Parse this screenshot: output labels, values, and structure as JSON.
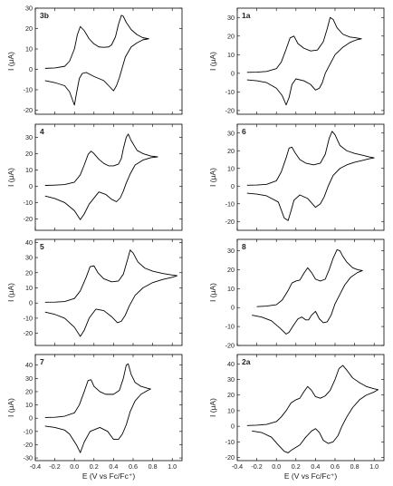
{
  "chart_data": [
    {
      "type": "line",
      "panel_label": "3b",
      "column": "left",
      "xlim": [
        -0.4,
        1.1
      ],
      "ylim": [
        -22,
        30
      ],
      "yticks": [
        -20,
        -10,
        0,
        10,
        20,
        30
      ],
      "ylabel": "I (μA)",
      "series": [
        {
          "x": [
            -0.3,
            -0.2,
            -0.1,
            -0.05,
            0.0,
            0.03,
            0.06,
            0.1,
            0.15,
            0.2,
            0.25,
            0.3,
            0.35,
            0.38,
            0.42,
            0.45,
            0.48,
            0.5,
            0.53,
            0.58,
            0.64,
            0.7,
            0.76,
            0.7,
            0.64,
            0.58,
            0.52,
            0.49,
            0.46,
            0.43,
            0.4,
            0.35,
            0.3,
            0.2,
            0.12,
            0.08,
            0.05,
            0.02,
            0.0,
            -0.05,
            -0.1,
            -0.2,
            -0.3
          ],
          "y": [
            0.5,
            0.7,
            1.5,
            4,
            10,
            17,
            21,
            19,
            15,
            12.5,
            11,
            10.8,
            11,
            12,
            16,
            22,
            26.5,
            26,
            23,
            19.5,
            17,
            15.5,
            15,
            14.5,
            13,
            11,
            6,
            1,
            -4,
            -8,
            -10.5,
            -8,
            -5.5,
            -3.5,
            -1.5,
            -2,
            -4.5,
            -12,
            -17.5,
            -11,
            -8,
            -6.5,
            -5.5
          ]
        }
      ]
    },
    {
      "type": "line",
      "panel_label": "1a",
      "column": "right",
      "xlim": [
        -0.4,
        1.1
      ],
      "ylim": [
        -22,
        35
      ],
      "yticks": [
        -20,
        -10,
        0,
        10,
        20,
        30
      ],
      "ylabel": "I (μA)",
      "series": [
        {
          "x": [
            -0.3,
            -0.2,
            -0.1,
            0.0,
            0.05,
            0.1,
            0.14,
            0.18,
            0.22,
            0.28,
            0.35,
            0.42,
            0.48,
            0.52,
            0.55,
            0.58,
            0.62,
            0.68,
            0.75,
            0.82,
            0.87,
            0.82,
            0.75,
            0.68,
            0.6,
            0.55,
            0.5,
            0.47,
            0.44,
            0.4,
            0.35,
            0.28,
            0.2,
            0.16,
            0.13,
            0.1,
            0.06,
            0.0,
            -0.1,
            -0.2,
            -0.3
          ],
          "y": [
            0.5,
            0.6,
            1,
            2.5,
            6,
            13,
            19,
            20,
            16,
            13.5,
            12,
            12.5,
            17,
            24,
            30,
            29,
            24.5,
            21,
            19.5,
            19,
            18.5,
            18,
            16.5,
            14,
            10,
            5,
            0,
            -5,
            -8,
            -9,
            -6,
            -4,
            -3,
            -6,
            -13,
            -17,
            -12,
            -8,
            -5,
            -4,
            -3.5
          ]
        }
      ]
    },
    {
      "type": "line",
      "panel_label": "4",
      "column": "left",
      "xlim": [
        -0.4,
        1.1
      ],
      "ylim": [
        -27,
        38
      ],
      "yticks": [
        -20,
        -10,
        0,
        10,
        20,
        30
      ],
      "ylabel": "I (μA)",
      "series": [
        {
          "x": [
            -0.3,
            -0.2,
            -0.1,
            0.0,
            0.06,
            0.1,
            0.14,
            0.17,
            0.2,
            0.25,
            0.3,
            0.35,
            0.4,
            0.45,
            0.48,
            0.5,
            0.53,
            0.55,
            0.58,
            0.64,
            0.7,
            0.78,
            0.85,
            0.78,
            0.7,
            0.62,
            0.57,
            0.53,
            0.5,
            0.47,
            0.43,
            0.38,
            0.32,
            0.25,
            0.15,
            0.1,
            0.06,
            0.0,
            -0.1,
            -0.2,
            -0.3
          ],
          "y": [
            0.5,
            0.7,
            1,
            2.5,
            7,
            13,
            19.5,
            21.5,
            20,
            16.5,
            14,
            12.5,
            12.5,
            13.5,
            17,
            23,
            30,
            32,
            28,
            22,
            20,
            18.5,
            18,
            17.5,
            16,
            13,
            7.5,
            2,
            -3,
            -7,
            -9.5,
            -8,
            -5,
            -3.5,
            -11,
            -17,
            -20.5,
            -15,
            -10,
            -7.5,
            -6
          ]
        }
      ]
    },
    {
      "type": "line",
      "panel_label": "6",
      "column": "right",
      "xlim": [
        -0.4,
        1.1
      ],
      "ylim": [
        -25,
        35
      ],
      "yticks": [
        -20,
        -10,
        0,
        10,
        20,
        30
      ],
      "ylabel": "I (μA)",
      "series": [
        {
          "x": [
            -0.3,
            -0.2,
            -0.1,
            0.0,
            0.05,
            0.1,
            0.13,
            0.16,
            0.19,
            0.24,
            0.3,
            0.38,
            0.45,
            0.5,
            0.54,
            0.57,
            0.6,
            0.65,
            0.72,
            0.8,
            0.88,
            0.95,
            1.0,
            0.95,
            0.88,
            0.8,
            0.72,
            0.65,
            0.58,
            0.53,
            0.49,
            0.45,
            0.4,
            0.32,
            0.24,
            0.18,
            0.15,
            0.12,
            0.08,
            0.02,
            -0.1,
            -0.2,
            -0.3
          ],
          "y": [
            0.5,
            0.6,
            1,
            3,
            8,
            16,
            21.5,
            22,
            19,
            15,
            13,
            12,
            13,
            18,
            27,
            31,
            29,
            23,
            20,
            18.5,
            17.5,
            16.5,
            16,
            15.5,
            14.5,
            13.5,
            12,
            10,
            6,
            0,
            -6,
            -10,
            -12,
            -7,
            -5,
            -8,
            -14,
            -19.5,
            -18,
            -9,
            -5.5,
            -4.5,
            -4
          ]
        }
      ]
    },
    {
      "type": "line",
      "panel_label": "5",
      "column": "left",
      "xlim": [
        -0.4,
        1.1
      ],
      "ylim": [
        -28,
        42
      ],
      "yticks": [
        -20,
        -10,
        0,
        10,
        20,
        30,
        40
      ],
      "ylabel": "I (μA)",
      "series": [
        {
          "x": [
            -0.3,
            -0.2,
            -0.1,
            0.0,
            0.06,
            0.12,
            0.16,
            0.2,
            0.24,
            0.3,
            0.38,
            0.45,
            0.5,
            0.54,
            0.57,
            0.6,
            0.65,
            0.72,
            0.8,
            0.9,
            1.0,
            1.05,
            1.0,
            0.9,
            0.8,
            0.7,
            0.62,
            0.56,
            0.52,
            0.48,
            0.44,
            0.38,
            0.3,
            0.22,
            0.15,
            0.1,
            0.06,
            0.0,
            -0.1,
            -0.2,
            -0.3
          ],
          "y": [
            0.5,
            0.6,
            1,
            3,
            8,
            17,
            24,
            24.5,
            20,
            16,
            14,
            14.5,
            19,
            28,
            35,
            33,
            27,
            23,
            21,
            19.5,
            18.5,
            18,
            17,
            15.5,
            13.5,
            10,
            5,
            -2,
            -8,
            -12,
            -13,
            -9,
            -5,
            -4,
            -10,
            -18,
            -22,
            -16,
            -10,
            -7.5,
            -6
          ]
        }
      ]
    },
    {
      "type": "line",
      "panel_label": "8",
      "column": "right",
      "xlim": [
        -0.4,
        1.1
      ],
      "ylim": [
        -20,
        36
      ],
      "yticks": [
        -20,
        -10,
        0,
        10,
        20,
        30
      ],
      "ylabel": "I (μA)",
      "series": [
        {
          "x": [
            -0.2,
            -0.1,
            0.0,
            0.06,
            0.12,
            0.16,
            0.2,
            0.24,
            0.28,
            0.32,
            0.36,
            0.4,
            0.45,
            0.5,
            0.54,
            0.58,
            0.62,
            0.65,
            0.68,
            0.72,
            0.78,
            0.83,
            0.88,
            0.83,
            0.76,
            0.7,
            0.65,
            0.6,
            0.56,
            0.52,
            0.48,
            0.44,
            0.4,
            0.36,
            0.33,
            0.3,
            0.26,
            0.22,
            0.18,
            0.13,
            0.1,
            0.04,
            -0.05,
            -0.15,
            -0.25
          ],
          "y": [
            0.5,
            0.8,
            1.5,
            4,
            9,
            13,
            14,
            14.5,
            18,
            21,
            18.5,
            15,
            14,
            15,
            20,
            26,
            30.5,
            30,
            27,
            24,
            21,
            20,
            19.5,
            18.5,
            16,
            12,
            7,
            2,
            -4,
            -7.5,
            -8,
            -6,
            -2,
            -4,
            -6.5,
            -6.5,
            -5,
            -6,
            -9,
            -13,
            -14,
            -11,
            -7,
            -5,
            -4
          ]
        }
      ]
    },
    {
      "type": "line",
      "panel_label": "7",
      "column": "left",
      "xlim": [
        -0.4,
        1.1
      ],
      "ylim": [
        -32,
        48
      ],
      "yticks": [
        -30,
        -20,
        -10,
        0,
        10,
        20,
        30,
        40
      ],
      "ylabel": "I (μA)",
      "series": [
        {
          "x": [
            -0.3,
            -0.2,
            -0.1,
            0.0,
            0.05,
            0.1,
            0.14,
            0.17,
            0.2,
            0.26,
            0.32,
            0.4,
            0.46,
            0.5,
            0.53,
            0.55,
            0.58,
            0.62,
            0.68,
            0.75,
            0.78,
            0.75,
            0.68,
            0.62,
            0.57,
            0.53,
            0.49,
            0.45,
            0.4,
            0.34,
            0.26,
            0.16,
            0.1,
            0.06,
            0.02,
            -0.05,
            -0.1,
            -0.2,
            -0.3
          ],
          "y": [
            0.5,
            0.7,
            1.5,
            4,
            10,
            20,
            28.5,
            29,
            24,
            20,
            18,
            18,
            21,
            30,
            40,
            41,
            33,
            27,
            24,
            22.5,
            22,
            21,
            18,
            13,
            5,
            -5,
            -12,
            -16,
            -16,
            -10,
            -7,
            -10,
            -18,
            -26,
            -20,
            -12,
            -9,
            -7,
            -6
          ]
        }
      ]
    },
    {
      "type": "line",
      "panel_label": "2a",
      "column": "right",
      "xlim": [
        -0.4,
        1.1
      ],
      "ylim": [
        -22,
        46
      ],
      "yticks": [
        -20,
        -10,
        0,
        10,
        20,
        30,
        40
      ],
      "ylabel": "I (μA)",
      "series": [
        {
          "x": [
            -0.3,
            -0.2,
            -0.1,
            0.0,
            0.05,
            0.1,
            0.15,
            0.2,
            0.24,
            0.28,
            0.32,
            0.36,
            0.4,
            0.45,
            0.5,
            0.55,
            0.6,
            0.64,
            0.68,
            0.72,
            0.78,
            0.85,
            0.92,
            1.0,
            1.04,
            1.0,
            0.92,
            0.85,
            0.78,
            0.72,
            0.67,
            0.63,
            0.58,
            0.53,
            0.48,
            0.44,
            0.4,
            0.36,
            0.3,
            0.24,
            0.2,
            0.16,
            0.12,
            0.08,
            0.02,
            -0.05,
            -0.15,
            -0.25
          ],
          "y": [
            0.5,
            0.7,
            1.2,
            3,
            6,
            10,
            15,
            17,
            18,
            22,
            25.5,
            23,
            19,
            18,
            19.5,
            23,
            30,
            37,
            39,
            36,
            31,
            28,
            25.5,
            24,
            23.5,
            22,
            20,
            17,
            12,
            6,
            0,
            -6,
            -10,
            -11,
            -9,
            -4,
            -1.5,
            -3,
            -7,
            -12,
            -13.5,
            -15,
            -17,
            -16,
            -12,
            -7,
            -4,
            -3
          ]
        }
      ]
    }
  ],
  "shared": {
    "xticks": [
      -0.4,
      -0.2,
      0.0,
      0.2,
      0.4,
      0.6,
      0.8,
      1.0
    ],
    "xtick_labels": [
      "-0.4",
      "-0.2",
      "0.0",
      "0.2",
      "0.4",
      "0.6",
      "0.8",
      "1.0"
    ],
    "xlabel": "E (V vs Fc/Fc⁺)",
    "ylabel": "I (μA)"
  }
}
